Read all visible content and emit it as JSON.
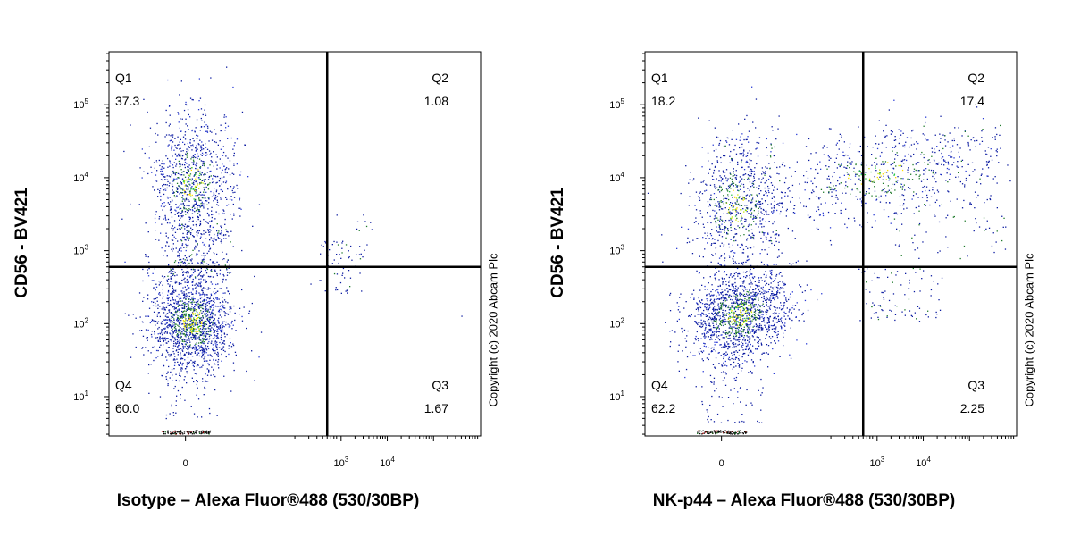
{
  "chart_data": [
    {
      "type": "scatter",
      "subtype": "flow-cytometry-density-dot-plot",
      "xlabel": "Isotype – Alexa Fluor®488 (530/30BP)",
      "ylabel": "CD56 - BV421",
      "x_scale": "biexponential",
      "y_scale": "biexponential",
      "x_ticks": [
        "0",
        "10^3",
        "10^4"
      ],
      "y_ticks": [
        "10^1",
        "10^2",
        "10^3",
        "10^4",
        "10^5"
      ],
      "gate_x": 500,
      "gate_y": 600,
      "quadrants": [
        {
          "name": "Q1",
          "value": "37.3"
        },
        {
          "name": "Q2",
          "value": "1.08"
        },
        {
          "name": "Q3",
          "value": "1.67"
        },
        {
          "name": "Q4",
          "value": "60.0"
        }
      ],
      "populations": [
        {
          "quadrant": "Q1",
          "x_center": 30,
          "y_center": 4000
        },
        {
          "quadrant": "Q4",
          "x_center": 30,
          "y_center": 110
        }
      ],
      "copyright": "Copyright (c) 2020 Abcam Plc"
    },
    {
      "type": "scatter",
      "subtype": "flow-cytometry-density-dot-plot",
      "xlabel": "NK-p44 – Alexa Fluor®488 (530/30BP)",
      "ylabel": "CD56 - BV421",
      "x_scale": "biexponential",
      "y_scale": "biexponential",
      "x_ticks": [
        "0",
        "10^3",
        "10^4"
      ],
      "y_ticks": [
        "10^1",
        "10^2",
        "10^3",
        "10^4",
        "10^5"
      ],
      "gate_x": 500,
      "gate_y": 600,
      "quadrants": [
        {
          "name": "Q1",
          "value": "18.2"
        },
        {
          "name": "Q2",
          "value": "17.4"
        },
        {
          "name": "Q3",
          "value": "2.25"
        },
        {
          "name": "Q4",
          "value": "62.2"
        }
      ],
      "populations": [
        {
          "quadrant": "Q1",
          "x_center": 30,
          "y_center": 3000
        },
        {
          "quadrant": "Q2",
          "x_center": 2000,
          "y_center": 10000
        },
        {
          "quadrant": "Q4",
          "x_center": 30,
          "y_center": 130
        }
      ],
      "copyright": "Copyright (c) 2020 Abcam Plc"
    }
  ]
}
